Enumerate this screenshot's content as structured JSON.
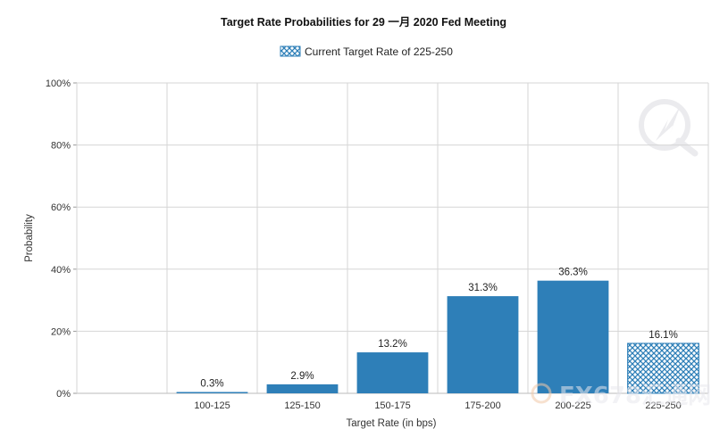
{
  "chart_data": {
    "type": "bar",
    "title": "Target Rate Probabilities for 29 一月 2020  Fed Meeting",
    "xlabel": "Target Rate (in bps)",
    "ylabel": "Probability",
    "categories": [
      "100-125",
      "125-150",
      "150-175",
      "175-200",
      "200-225",
      "225-250"
    ],
    "values": [
      0.3,
      2.9,
      13.2,
      31.3,
      36.3,
      16.1
    ],
    "value_labels": [
      "0.3%",
      "2.9%",
      "13.2%",
      "31.3%",
      "36.3%",
      "16.1%"
    ],
    "ylim": [
      0,
      100
    ],
    "yticks": [
      "0%",
      "20%",
      "40%",
      "60%",
      "80%",
      "100%"
    ],
    "grid": true,
    "legend": {
      "position": "top-center",
      "label": "Current Target Rate of 225-250"
    },
    "current_category_index": 5,
    "colors": {
      "bar": "#2e7fb8",
      "current_pattern": "#2e7fb8",
      "grid": "#d6d6d6"
    }
  },
  "watermark": {
    "text": "FX678汇通网"
  }
}
